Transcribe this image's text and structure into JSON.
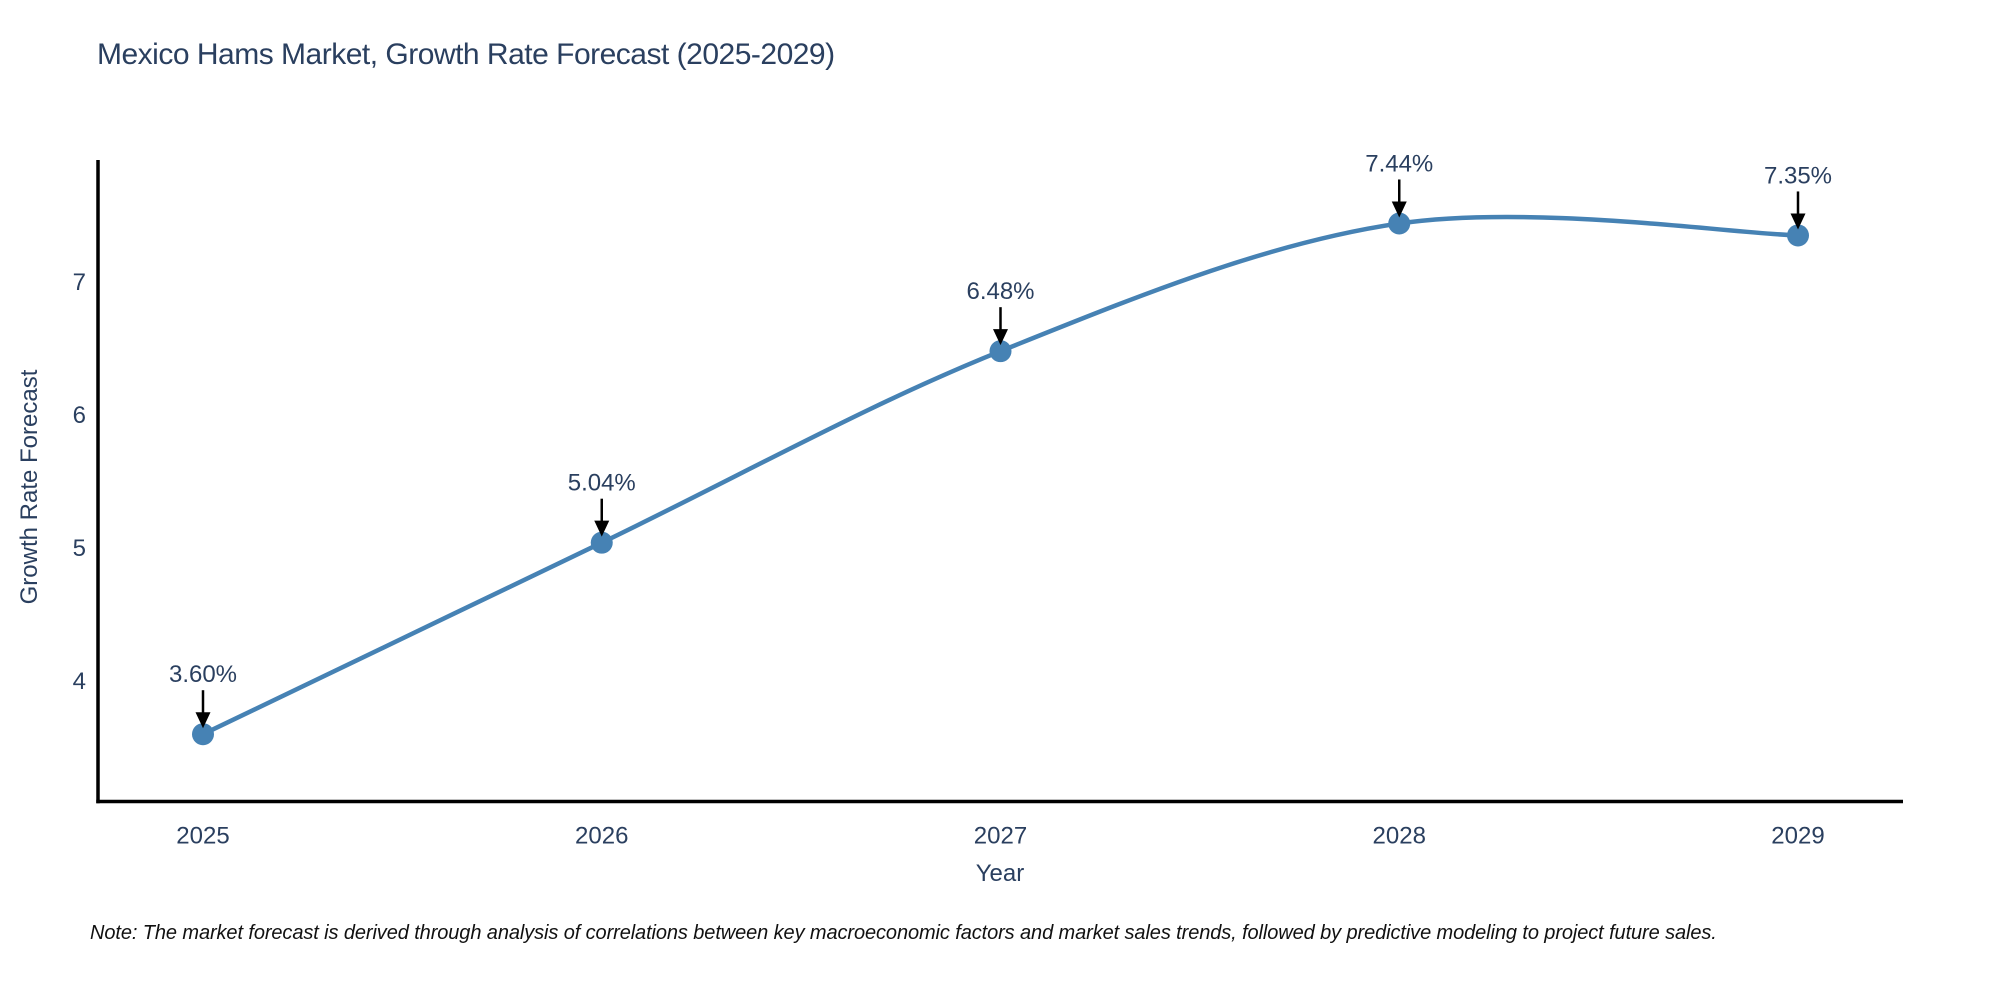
{
  "title": "Mexico Hams Market, Growth Rate Forecast (2025-2029)",
  "note": "Note: The market forecast is derived through analysis of correlations between key macroeconomic factors and market sales trends, followed by predictive modeling to project future sales.",
  "chart_data": {
    "type": "line",
    "title": "Mexico Hams Market, Growth Rate Forecast (2025-2029)",
    "xlabel": "Year",
    "ylabel": "Growth Rate Forecast",
    "x": [
      2025,
      2026,
      2027,
      2028,
      2029
    ],
    "values": [
      3.6,
      5.04,
      6.48,
      7.44,
      7.35
    ],
    "point_labels": [
      "3.60%",
      "5.04%",
      "6.48%",
      "7.44%",
      "7.35%"
    ],
    "x_tick_labels": [
      "2025",
      "2026",
      "2027",
      "2028",
      "2029"
    ],
    "y_ticks": [
      4,
      5,
      6,
      7
    ],
    "ylim": [
      3.0,
      7.95
    ],
    "grid": false,
    "legend": "none",
    "line_shape": "spline",
    "line_color": "#4682B4",
    "marker_color": "#4682B4",
    "annotation_arrow_color": "#000000",
    "annotation_text_color": "#2a3f5f",
    "axis_line_color": "#000000",
    "tick_label_color": "#2a3f5f"
  }
}
